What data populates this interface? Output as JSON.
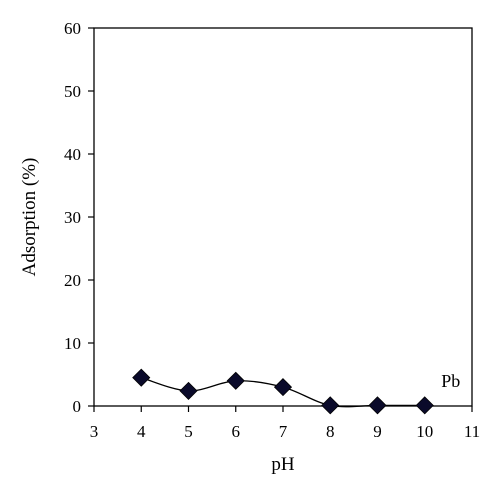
{
  "chart_data": {
    "type": "line",
    "title": "",
    "xlabel": "pH",
    "ylabel": "Adsorption (%)",
    "xlim": [
      3,
      11
    ],
    "ylim": [
      0,
      60
    ],
    "x_ticks": [
      3,
      4,
      5,
      6,
      7,
      8,
      9,
      10,
      11
    ],
    "y_ticks": [
      0,
      10,
      20,
      30,
      40,
      50,
      60
    ],
    "grid": false,
    "series": [
      {
        "name": "Pb",
        "marker": "diamond",
        "line": "smooth",
        "marker_color": "#0a0a2a",
        "line_color": "#000000",
        "x": [
          4,
          5,
          6,
          7,
          8,
          9,
          10
        ],
        "y": [
          4.5,
          2.4,
          4.0,
          3.0,
          0.1,
          0.1,
          0.1
        ]
      }
    ],
    "annotations": [
      {
        "text": "Pb",
        "x": 10.35,
        "y": 3.0
      }
    ]
  }
}
